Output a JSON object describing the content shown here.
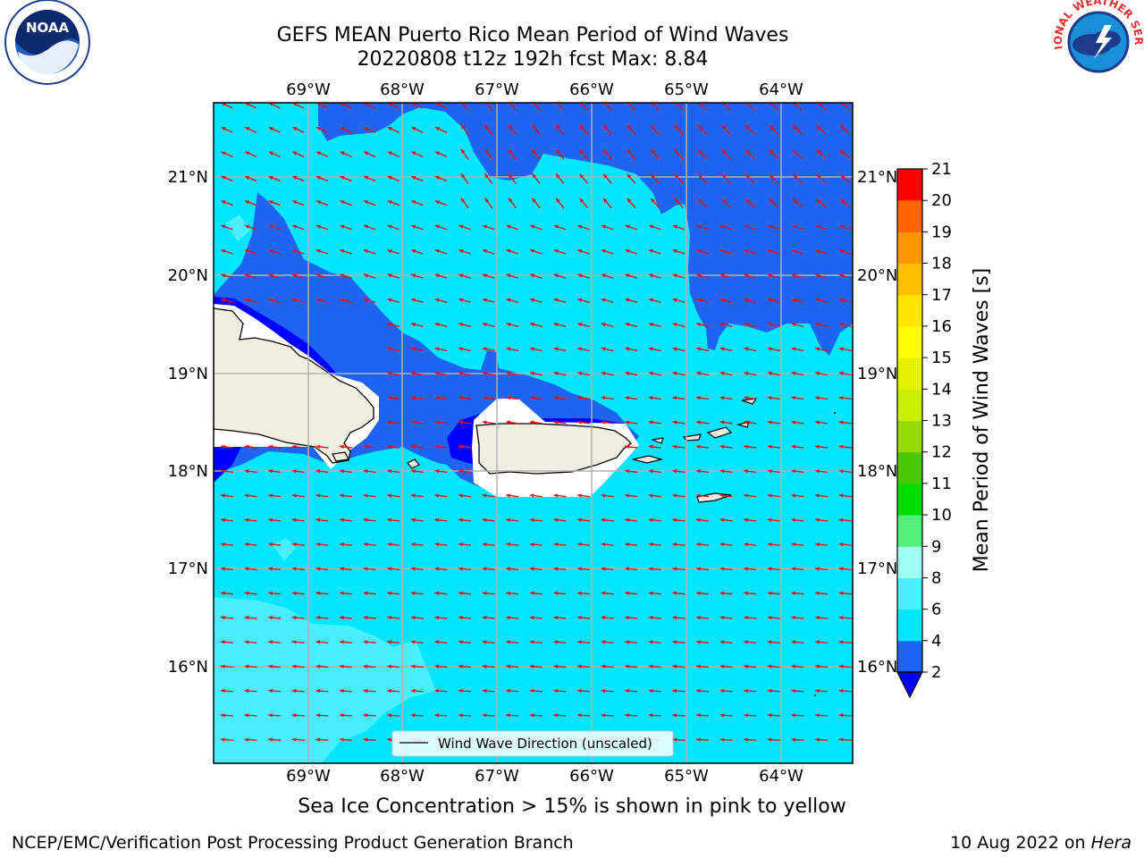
{
  "title": "GEFS MEAN Puerto Rico Mean Period of Wind Waves",
  "subtitle": "20220808 t12z 192h fcst   Max: 8.84",
  "logos": {
    "left": "NOAA",
    "right": "NATIONAL WEATHER SERVICE"
  },
  "lon_labels": [
    "69°W",
    "68°W",
    "67°W",
    "66°W",
    "65°W",
    "64°W"
  ],
  "lat_labels": [
    "21°N",
    "20°N",
    "19°N",
    "18°N",
    "17°N",
    "16°N"
  ],
  "legend_label": "Wind Wave Direction (unscaled)",
  "colorbar": {
    "label": "Mean Period of Wind Waves [s]",
    "ticks": [
      "2",
      "4",
      "6",
      "8",
      "9",
      "10",
      "11",
      "12",
      "13",
      "14",
      "15",
      "16",
      "17",
      "18",
      "19",
      "20",
      "21"
    ],
    "colors": [
      "#1e64f0",
      "#00e6ff",
      "#48f0ff",
      "#a0fff5",
      "#50f07a",
      "#00dc00",
      "#4cc800",
      "#96dc00",
      "#c8f000",
      "#e6f000",
      "#ffff00",
      "#ffe600",
      "#ffbe00",
      "#ff9600",
      "#ff6400",
      "#ff3200",
      "#ff0000"
    ],
    "extend_color": "#0000ff"
  },
  "caption": "Sea Ice Concentration > 15% is shown in pink to yellow",
  "footer_left": "NCEP/EMC/Verification Post Processing Product Generation Branch",
  "footer_right_prefix": "10 Aug 2022 on ",
  "footer_right_host": "Hera",
  "colors": {
    "level_2_4": "#1e64f0",
    "level_4_6": "#00e6ff",
    "level_6_8": "#48f0ff",
    "level_lt2": "#0000ff",
    "land": "#efeddf",
    "arrow": "#ff0000"
  }
}
